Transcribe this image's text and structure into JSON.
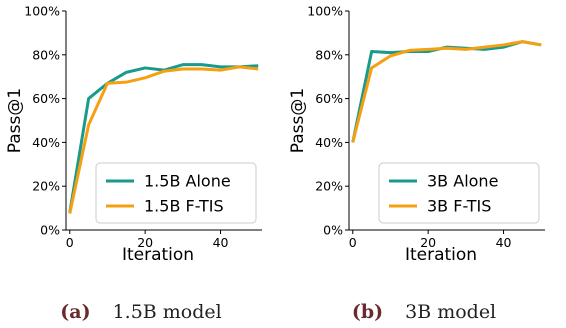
{
  "chart_data": [
    {
      "type": "line",
      "caption_letter": "(a)",
      "caption_text": "1.5B model",
      "xlabel": "Iteration",
      "ylabel": "Pass@1",
      "xlim": [
        -1,
        51
      ],
      "ylim": [
        0,
        100
      ],
      "xticks": [
        0,
        20,
        40
      ],
      "yticks": [
        0,
        20,
        40,
        60,
        80,
        100
      ],
      "ytick_labels": [
        "0%",
        "20%",
        "40%",
        "60%",
        "80%",
        "100%"
      ],
      "legend_position": "lower-right",
      "x": [
        0,
        5,
        10,
        15,
        20,
        25,
        30,
        35,
        40,
        45,
        50
      ],
      "series": [
        {
          "name": "1.5B Alone",
          "color": "#1a9a8c",
          "values": [
            8,
            60,
            67,
            72,
            74,
            73,
            75.5,
            75.5,
            74.5,
            74.5,
            75
          ]
        },
        {
          "name": "1.5B F-TIS",
          "color": "#f5a013",
          "values": [
            7.5,
            48,
            67,
            67.5,
            69.5,
            72.5,
            73.5,
            73.5,
            73,
            74.5,
            73.5
          ]
        }
      ]
    },
    {
      "type": "line",
      "caption_letter": "(b)",
      "caption_text": "3B model",
      "xlabel": "Iteration",
      "ylabel": "Pass@1",
      "xlim": [
        -1,
        51
      ],
      "ylim": [
        0,
        100
      ],
      "xticks": [
        0,
        20,
        40
      ],
      "yticks": [
        0,
        20,
        40,
        60,
        80,
        100
      ],
      "ytick_labels": [
        "0%",
        "20%",
        "40%",
        "60%",
        "80%",
        "100%"
      ],
      "legend_position": "lower-right",
      "x": [
        0,
        5,
        10,
        15,
        20,
        25,
        30,
        35,
        40,
        45,
        50
      ],
      "series": [
        {
          "name": "3B Alone",
          "color": "#1a9a8c",
          "values": [
            40,
            81.5,
            81,
            81.5,
            81.5,
            83.5,
            83,
            82.5,
            83.5,
            86,
            84.5
          ]
        },
        {
          "name": "3B F-TIS",
          "color": "#f5a013",
          "values": [
            40,
            74,
            79.5,
            82,
            82.5,
            83,
            82.5,
            83.5,
            84.5,
            86,
            84.5
          ]
        }
      ]
    }
  ]
}
